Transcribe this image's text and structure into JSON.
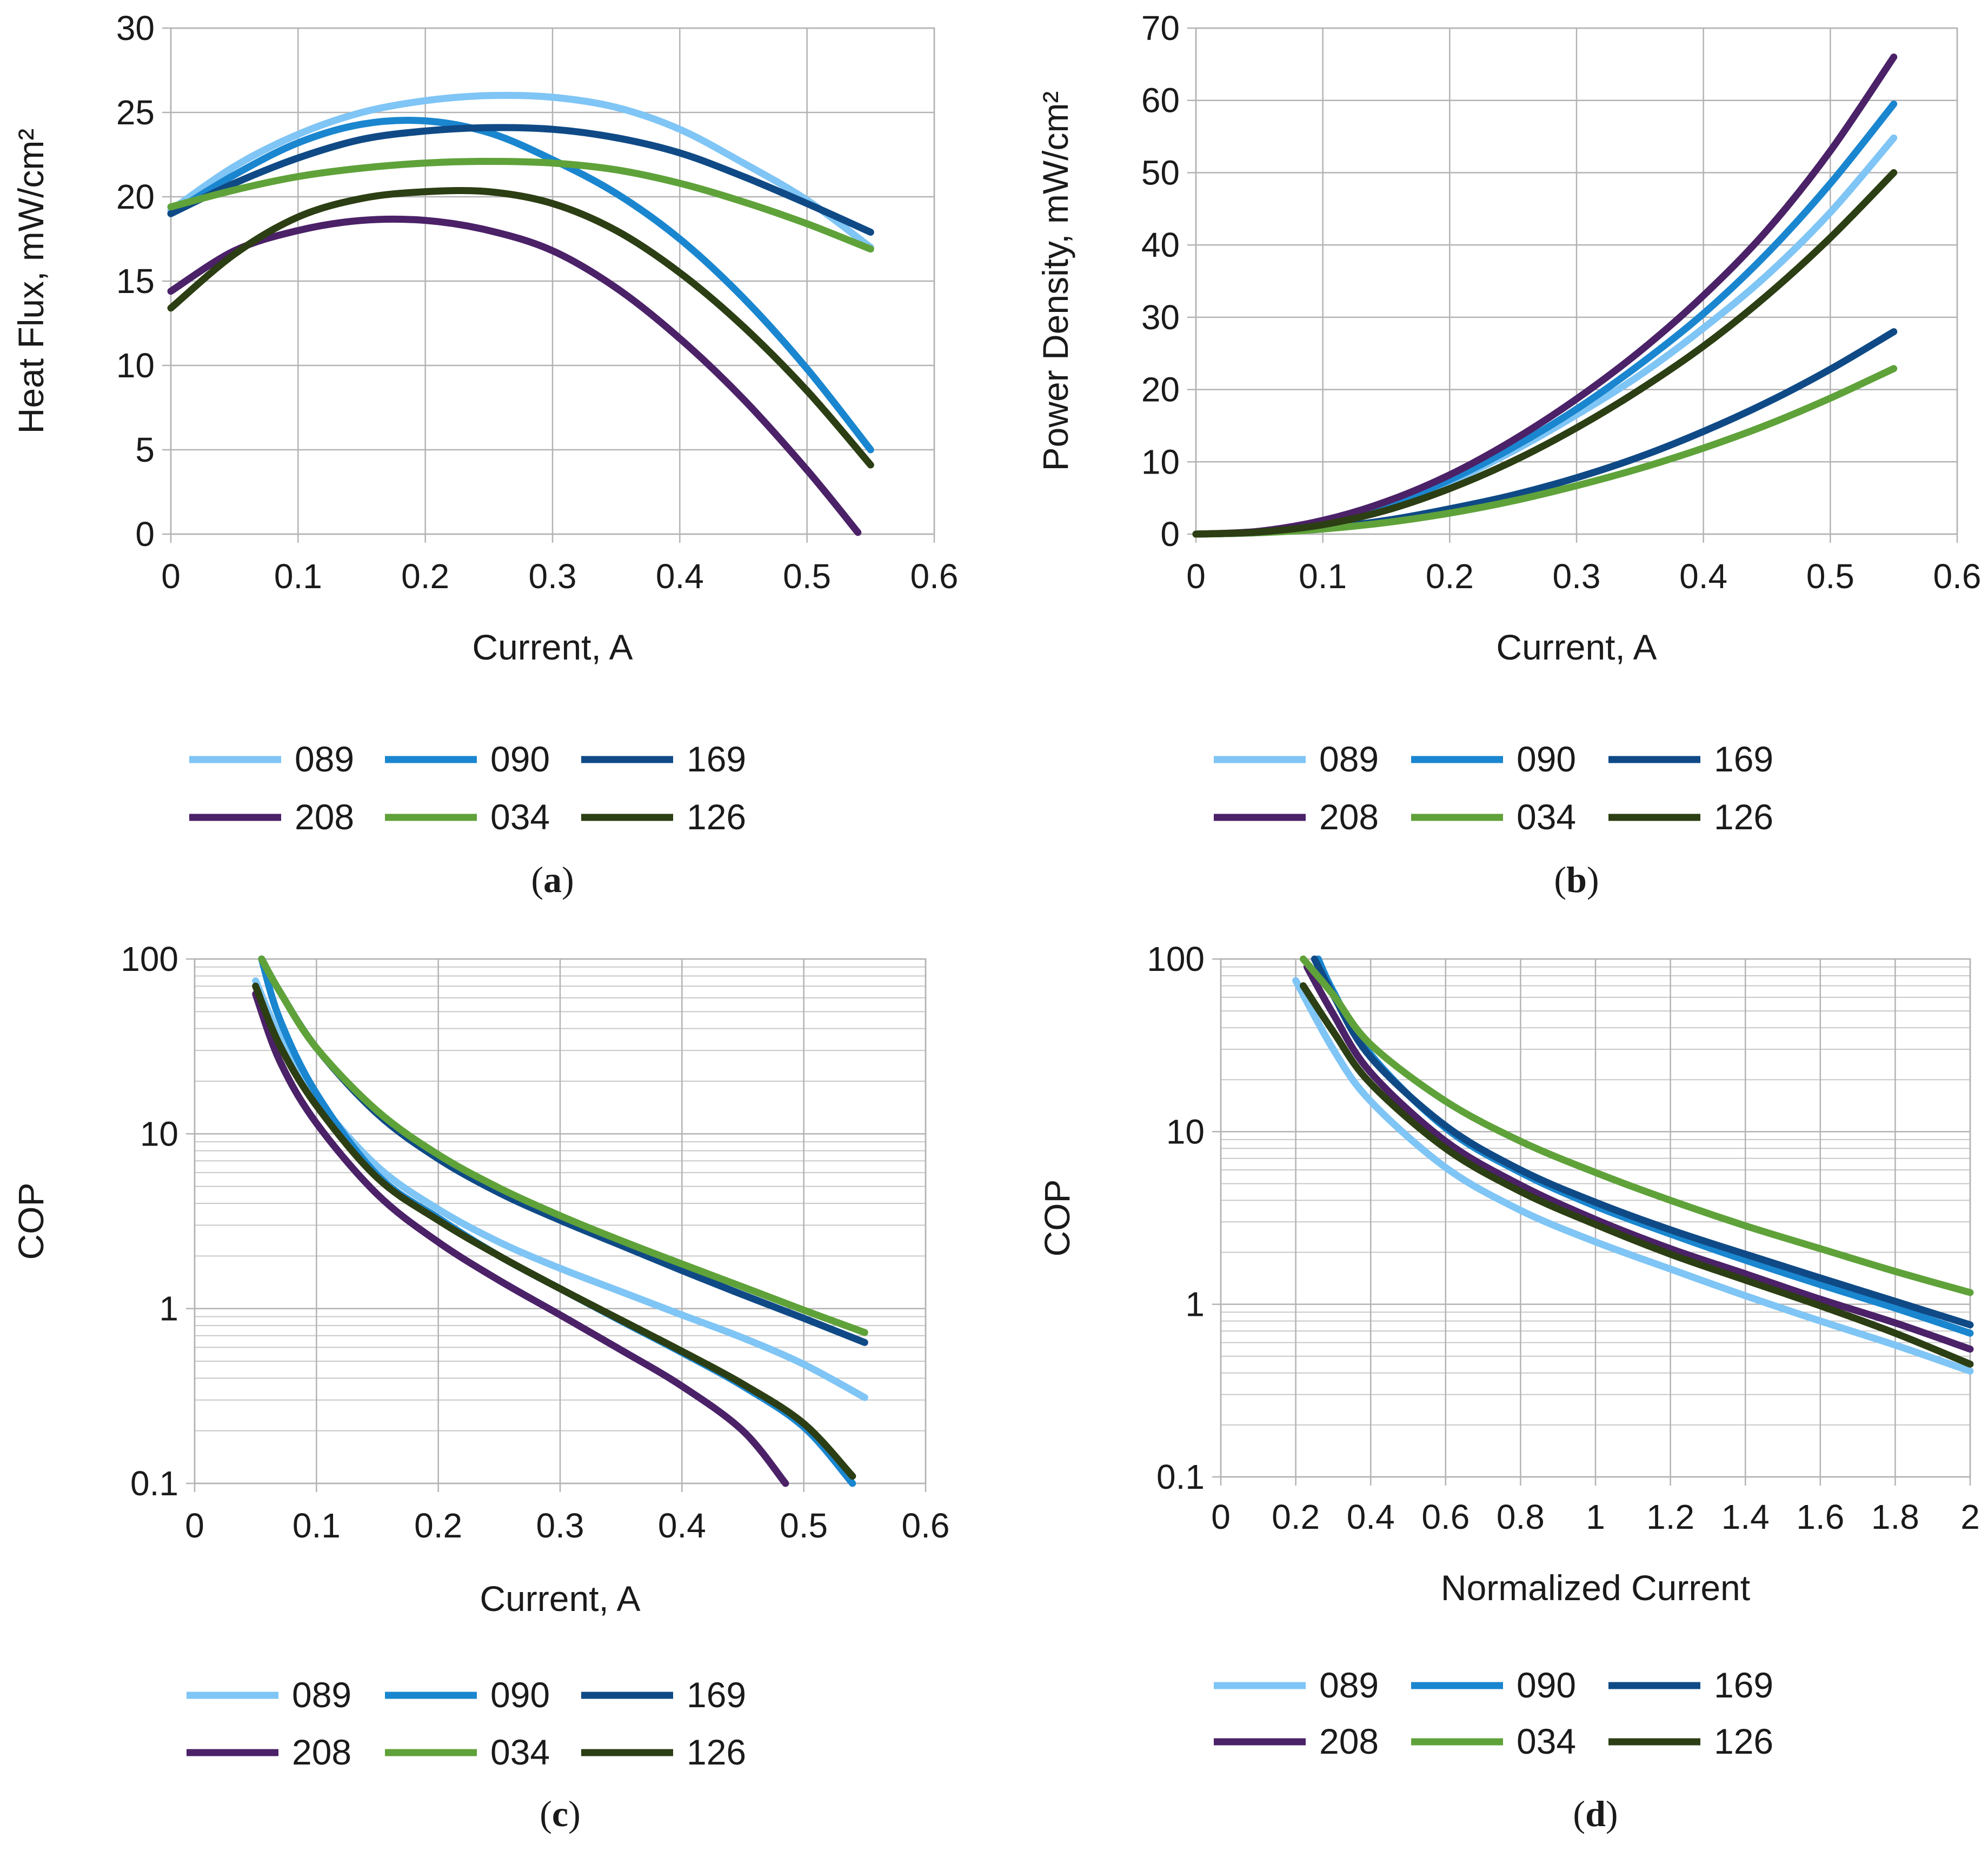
{
  "series_styles": [
    {
      "name": "089",
      "color": "#7fc5f5"
    },
    {
      "name": "090",
      "color": "#1a86cf"
    },
    {
      "name": "169",
      "color": "#0f4a86"
    },
    {
      "name": "208",
      "color": "#4b2168"
    },
    {
      "name": "034",
      "color": "#5fa23a"
    },
    {
      "name": "126",
      "color": "#2c3e13"
    }
  ],
  "chart_data": [
    {
      "type": "line",
      "caption": "a",
      "xlabel": "Current, A",
      "ylabel": "Heat Flux, mW/cm²",
      "xlim": [
        0,
        0.6
      ],
      "ylim": [
        0,
        30
      ],
      "yscale": "linear",
      "xticks": [
        "0",
        "0.1",
        "0.2",
        "0.3",
        "0.4",
        "0.5",
        "0.6"
      ],
      "yticks": [
        "0",
        "5",
        "10",
        "15",
        "20",
        "25",
        "30"
      ],
      "legend": [
        "089",
        "090",
        "169",
        "208",
        "034",
        "126"
      ],
      "series": [
        {
          "name": "089",
          "x": [
            0,
            0.05,
            0.1,
            0.15,
            0.2,
            0.25,
            0.3,
            0.35,
            0.4,
            0.45,
            0.5,
            0.55
          ],
          "y": [
            19.2,
            21.8,
            23.7,
            25.0,
            25.7,
            26.0,
            25.9,
            25.3,
            24.0,
            22.0,
            19.8,
            17.0
          ]
        },
        {
          "name": "090",
          "x": [
            0,
            0.05,
            0.1,
            0.15,
            0.2,
            0.25,
            0.3,
            0.35,
            0.4,
            0.45,
            0.5,
            0.55
          ],
          "y": [
            19.0,
            21.3,
            23.2,
            24.3,
            24.5,
            23.8,
            22.2,
            20.2,
            17.5,
            14.0,
            9.8,
            5.0
          ]
        },
        {
          "name": "169",
          "x": [
            0,
            0.05,
            0.1,
            0.15,
            0.2,
            0.25,
            0.3,
            0.35,
            0.4,
            0.45,
            0.5,
            0.55
          ],
          "y": [
            19.0,
            20.8,
            22.3,
            23.4,
            23.9,
            24.1,
            24.0,
            23.5,
            22.6,
            21.2,
            19.6,
            17.9
          ]
        },
        {
          "name": "208",
          "x": [
            0,
            0.05,
            0.1,
            0.15,
            0.2,
            0.25,
            0.3,
            0.35,
            0.4,
            0.45,
            0.5,
            0.54
          ],
          "y": [
            14.4,
            16.8,
            18.0,
            18.6,
            18.6,
            18.0,
            16.8,
            14.6,
            11.6,
            8.0,
            3.8,
            0.1
          ]
        },
        {
          "name": "034",
          "x": [
            0,
            0.05,
            0.1,
            0.15,
            0.2,
            0.25,
            0.3,
            0.35,
            0.4,
            0.45,
            0.5,
            0.55
          ],
          "y": [
            19.4,
            20.4,
            21.2,
            21.7,
            22.0,
            22.1,
            22.0,
            21.6,
            20.8,
            19.7,
            18.4,
            16.9
          ]
        },
        {
          "name": "126",
          "x": [
            0,
            0.05,
            0.1,
            0.15,
            0.2,
            0.25,
            0.3,
            0.35,
            0.4,
            0.45,
            0.5,
            0.55
          ],
          "y": [
            13.4,
            16.6,
            18.8,
            19.9,
            20.3,
            20.3,
            19.6,
            18.0,
            15.5,
            12.3,
            8.5,
            4.1
          ]
        }
      ]
    },
    {
      "type": "line",
      "caption": "b",
      "xlabel": "Current, A",
      "ylabel": "Power Density, mW/cm²",
      "xlim": [
        0,
        0.6
      ],
      "ylim": [
        0,
        70
      ],
      "yscale": "linear",
      "xticks": [
        "0",
        "0.1",
        "0.2",
        "0.3",
        "0.4",
        "0.5",
        "0.6"
      ],
      "yticks": [
        "0",
        "10",
        "20",
        "30",
        "40",
        "50",
        "60",
        "70"
      ],
      "legend": [
        "089",
        "090",
        "169",
        "208",
        "034",
        "126"
      ],
      "series": [
        {
          "name": "089",
          "x": [
            0,
            0.05,
            0.1,
            0.15,
            0.2,
            0.25,
            0.3,
            0.35,
            0.4,
            0.45,
            0.5,
            0.55
          ],
          "y": [
            0,
            0.3,
            1.5,
            3.8,
            7.2,
            11.5,
            16.5,
            22.0,
            28.5,
            35.8,
            44.5,
            54.8
          ]
        },
        {
          "name": "090",
          "x": [
            0,
            0.05,
            0.1,
            0.15,
            0.2,
            0.25,
            0.3,
            0.35,
            0.4,
            0.45,
            0.5,
            0.55
          ],
          "y": [
            0,
            0.3,
            1.6,
            4.0,
            7.5,
            12.0,
            17.3,
            23.5,
            30.5,
            38.8,
            48.5,
            59.5
          ]
        },
        {
          "name": "169",
          "x": [
            0,
            0.05,
            0.1,
            0.15,
            0.2,
            0.25,
            0.3,
            0.35,
            0.4,
            0.45,
            0.5,
            0.55
          ],
          "y": [
            0,
            0.2,
            0.8,
            1.9,
            3.5,
            5.4,
            7.8,
            10.7,
            14.2,
            18.2,
            22.8,
            28.0
          ]
        },
        {
          "name": "208",
          "x": [
            0,
            0.05,
            0.1,
            0.15,
            0.2,
            0.25,
            0.3,
            0.35,
            0.4,
            0.45,
            0.5,
            0.55
          ],
          "y": [
            0,
            0.4,
            1.9,
            4.5,
            8.2,
            13.0,
            18.7,
            25.3,
            33.0,
            42.0,
            53.0,
            66.0
          ]
        },
        {
          "name": "034",
          "x": [
            0,
            0.05,
            0.1,
            0.15,
            0.2,
            0.25,
            0.3,
            0.35,
            0.4,
            0.45,
            0.5,
            0.55
          ],
          "y": [
            0,
            0.2,
            0.7,
            1.6,
            2.9,
            4.6,
            6.7,
            9.1,
            11.9,
            15.1,
            18.8,
            22.9
          ]
        },
        {
          "name": "126",
          "x": [
            0,
            0.05,
            0.1,
            0.15,
            0.2,
            0.25,
            0.3,
            0.35,
            0.4,
            0.45,
            0.5,
            0.55
          ],
          "y": [
            0,
            0.3,
            1.3,
            3.3,
            6.3,
            10.1,
            14.7,
            20.0,
            26.0,
            33.0,
            41.0,
            50.0
          ]
        }
      ]
    },
    {
      "type": "line",
      "caption": "c",
      "xlabel": "Current, A",
      "ylabel": "COP",
      "xlim": [
        0,
        0.6
      ],
      "ylim": [
        0.1,
        100
      ],
      "yscale": "log",
      "xticks": [
        "0",
        "0.1",
        "0.2",
        "0.3",
        "0.4",
        "0.5",
        "0.6"
      ],
      "yticks": [
        "0.1",
        "1",
        "10",
        "100"
      ],
      "legend": [
        "089",
        "090",
        "169",
        "208",
        "034",
        "126"
      ],
      "series": [
        {
          "name": "089",
          "x": [
            0.05,
            0.07,
            0.1,
            0.15,
            0.2,
            0.25,
            0.3,
            0.35,
            0.4,
            0.45,
            0.5,
            0.55
          ],
          "y": [
            75,
            36,
            16,
            6.5,
            3.7,
            2.4,
            1.7,
            1.25,
            0.92,
            0.68,
            0.48,
            0.31
          ]
        },
        {
          "name": "090",
          "x": [
            0.055,
            0.07,
            0.1,
            0.15,
            0.2,
            0.25,
            0.3,
            0.35,
            0.4,
            0.45,
            0.5,
            0.54
          ],
          "y": [
            100,
            45,
            17,
            5.8,
            3.3,
            2.0,
            1.3,
            0.85,
            0.56,
            0.36,
            0.21,
            0.1
          ]
        },
        {
          "name": "169",
          "x": [
            0.055,
            0.07,
            0.1,
            0.15,
            0.2,
            0.25,
            0.3,
            0.35,
            0.4,
            0.45,
            0.5,
            0.55
          ],
          "y": [
            100,
            65,
            31,
            13,
            7.2,
            4.6,
            3.2,
            2.3,
            1.65,
            1.2,
            0.88,
            0.64
          ]
        },
        {
          "name": "208",
          "x": [
            0.05,
            0.07,
            0.1,
            0.15,
            0.2,
            0.25,
            0.3,
            0.35,
            0.4,
            0.45,
            0.485
          ],
          "y": [
            63,
            26,
            11.5,
            4.5,
            2.4,
            1.45,
            0.92,
            0.58,
            0.36,
            0.2,
            0.1
          ]
        },
        {
          "name": "034",
          "x": [
            0.055,
            0.07,
            0.1,
            0.15,
            0.2,
            0.25,
            0.3,
            0.35,
            0.4,
            0.45,
            0.5,
            0.55
          ],
          "y": [
            100,
            65,
            31,
            13.5,
            7.6,
            4.9,
            3.4,
            2.45,
            1.8,
            1.33,
            0.98,
            0.73
          ]
        },
        {
          "name": "126",
          "x": [
            0.05,
            0.07,
            0.1,
            0.15,
            0.2,
            0.25,
            0.3,
            0.35,
            0.4,
            0.45,
            0.5,
            0.54
          ],
          "y": [
            70,
            32,
            14.5,
            5.6,
            3.2,
            2.0,
            1.3,
            0.86,
            0.57,
            0.37,
            0.22,
            0.11
          ]
        }
      ]
    },
    {
      "type": "line",
      "caption": "d",
      "xlabel": "Normalized  Current",
      "ylabel": "COP",
      "xlim": [
        0,
        2
      ],
      "ylim": [
        0.1,
        100
      ],
      "yscale": "log",
      "xticks": [
        "0",
        "0.2",
        "0.4",
        "0.6",
        "0.8",
        "1",
        "1.2",
        "1.4",
        "1.6",
        "1.8",
        "2"
      ],
      "yticks": [
        "0.1",
        "1",
        "10",
        "100"
      ],
      "legend": [
        "089",
        "090",
        "169",
        "208",
        "034",
        "126"
      ],
      "series": [
        {
          "name": "089",
          "x": [
            0.2,
            0.3,
            0.4,
            0.6,
            0.8,
            1.0,
            1.2,
            1.4,
            1.6,
            1.8,
            2.0
          ],
          "y": [
            75,
            30,
            15,
            6.2,
            3.5,
            2.3,
            1.6,
            1.12,
            0.8,
            0.58,
            0.41
          ]
        },
        {
          "name": "090",
          "x": [
            0.26,
            0.3,
            0.4,
            0.6,
            0.8,
            1.0,
            1.2,
            1.4,
            1.6,
            1.8,
            2.0
          ],
          "y": [
            100,
            65,
            28,
            10.5,
            5.8,
            3.7,
            2.55,
            1.8,
            1.3,
            0.95,
            0.68
          ]
        },
        {
          "name": "169",
          "x": [
            0.25,
            0.3,
            0.4,
            0.6,
            0.8,
            1.0,
            1.2,
            1.4,
            1.6,
            1.8,
            2.0
          ],
          "y": [
            100,
            62,
            27,
            10.8,
            6.0,
            3.9,
            2.7,
            1.95,
            1.42,
            1.04,
            0.76
          ]
        },
        {
          "name": "208",
          "x": [
            0.23,
            0.3,
            0.4,
            0.6,
            0.8,
            1.0,
            1.2,
            1.4,
            1.6,
            1.8,
            2.0
          ],
          "y": [
            90,
            48,
            22,
            8.8,
            4.9,
            3.1,
            2.1,
            1.5,
            1.07,
            0.78,
            0.55
          ]
        },
        {
          "name": "034",
          "x": [
            0.22,
            0.3,
            0.4,
            0.6,
            0.8,
            1.0,
            1.2,
            1.4,
            1.6,
            1.8,
            2.0
          ],
          "y": [
            100,
            62,
            32,
            15,
            8.8,
            5.8,
            4.0,
            2.85,
            2.1,
            1.55,
            1.17
          ]
        },
        {
          "name": "126",
          "x": [
            0.22,
            0.3,
            0.4,
            0.6,
            0.8,
            1.0,
            1.2,
            1.4,
            1.6,
            1.8,
            2.0
          ],
          "y": [
            70,
            38,
            19,
            8.0,
            4.5,
            2.9,
            1.95,
            1.38,
            0.98,
            0.68,
            0.45
          ]
        }
      ]
    }
  ]
}
